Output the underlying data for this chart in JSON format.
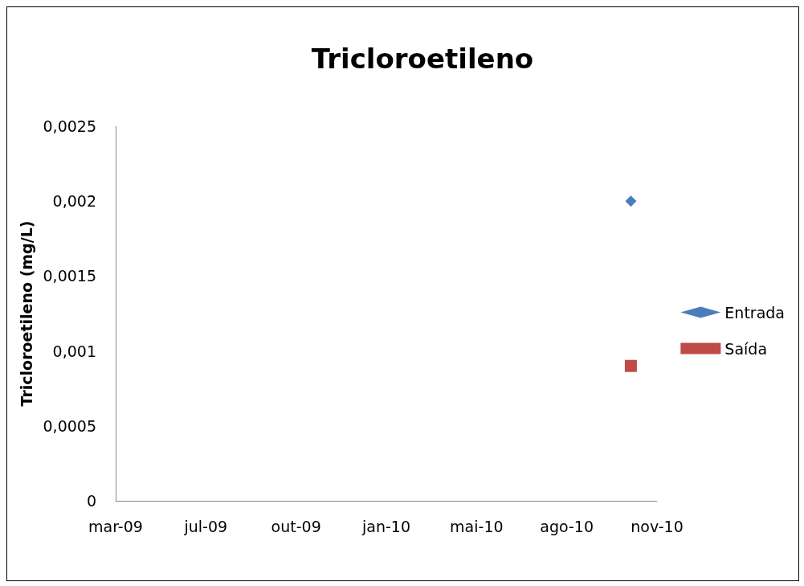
{
  "chart_data": {
    "type": "line",
    "title": "Tricloroetileno",
    "ylabel": "Tricloroetileno (mg/L)",
    "xlim": [
      "2009-03-28",
      "2010-11-18"
    ],
    "xticks": [
      {
        "value": "2009-03-28",
        "label": "mar-09"
      },
      {
        "value": "2009-07-06",
        "label": "jul-09"
      },
      {
        "value": "2009-10-14",
        "label": "out-09"
      },
      {
        "value": "2010-01-22",
        "label": "jan-10"
      },
      {
        "value": "2010-05-02",
        "label": "mai-10"
      },
      {
        "value": "2010-08-10",
        "label": "ago-10"
      },
      {
        "value": "2010-11-18",
        "label": "nov-10"
      }
    ],
    "ylim": [
      0,
      0.0025
    ],
    "yticks": [
      0,
      {
        "value": 0.0005,
        "label": "0,0005"
      },
      {
        "value": 0.001,
        "label": "0,001"
      },
      {
        "value": 0.0015,
        "label": "0,0015"
      },
      {
        "value": 0.002,
        "label": "0,002"
      },
      {
        "value": 0.0025,
        "label": "0,0025"
      }
    ],
    "series": [
      {
        "name": "Entrada",
        "color": "#4a7ebb",
        "marker": "diamond",
        "x": [
          "2010-10-20"
        ],
        "values": [
          0.002
        ]
      },
      {
        "name": "Saída",
        "color": "#be4b48",
        "marker": "square",
        "x": [
          "2010-10-20"
        ],
        "values": [
          0.0009
        ]
      }
    ],
    "legend": "right",
    "grid": false
  }
}
